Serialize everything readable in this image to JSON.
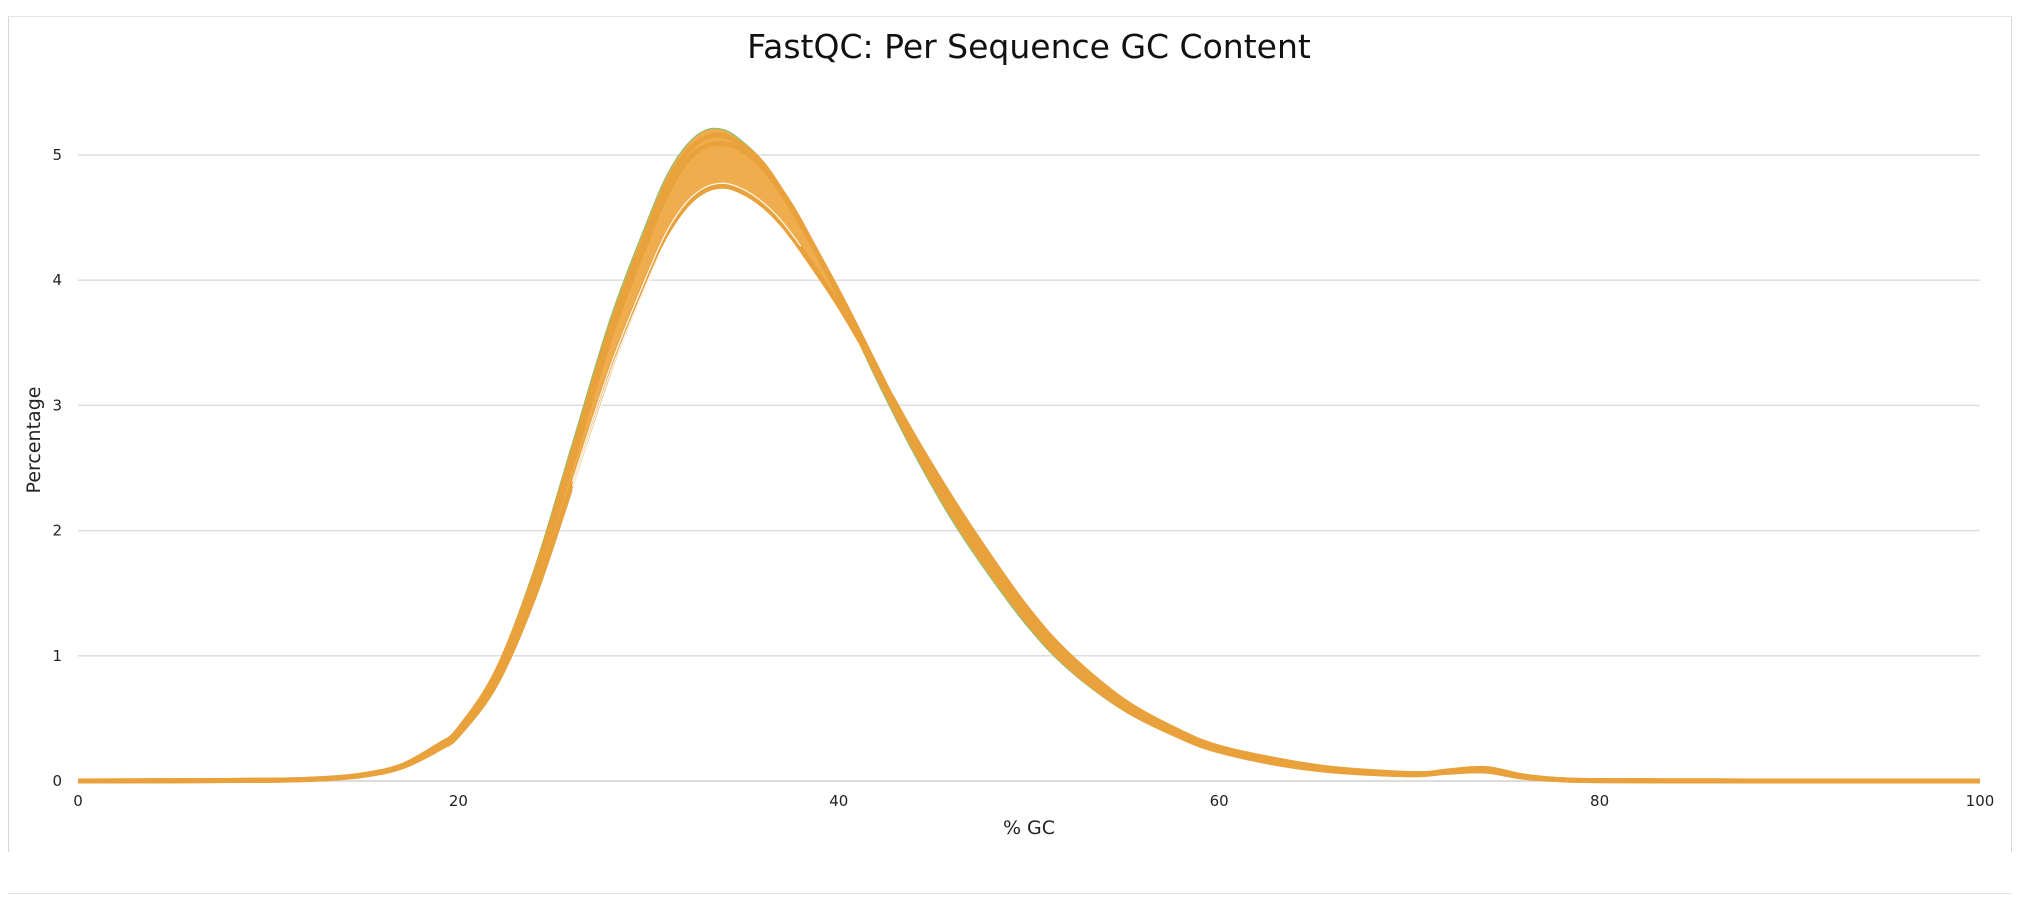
{
  "chart_data": {
    "type": "line",
    "title": "FastQC: Per Sequence GC Content",
    "xlabel": "% GC",
    "ylabel": "Percentage",
    "xlim": [
      0,
      100
    ],
    "ylim": [
      0,
      5.5
    ],
    "x_ticks": [
      0,
      20,
      40,
      60,
      80,
      100
    ],
    "y_ticks": [
      0,
      1,
      2,
      3,
      4,
      5
    ],
    "grid": true,
    "legend": "none",
    "colors": {
      "line": "#f0ad4e",
      "line_edge": "#e9a13c",
      "accent": "#8fbf6f",
      "grid": "#dedede"
    },
    "x": [
      0,
      5,
      10,
      13,
      15,
      17,
      19,
      20,
      22,
      24,
      26,
      28,
      30,
      31,
      32,
      33,
      34,
      35,
      36,
      37,
      38,
      40,
      42,
      44,
      46,
      48,
      50,
      52,
      55,
      58,
      60,
      63,
      66,
      70,
      72,
      74,
      76,
      78,
      80,
      85,
      90,
      95,
      100
    ],
    "series": [
      {
        "values": [
          0,
          0.002,
          0.006,
          0.02,
          0.05,
          0.12,
          0.28,
          0.4,
          0.85,
          1.6,
          2.55,
          3.55,
          4.35,
          4.7,
          4.95,
          5.07,
          5.09,
          5.03,
          4.9,
          4.7,
          4.45,
          3.9,
          3.3,
          2.7,
          2.18,
          1.72,
          1.3,
          0.96,
          0.6,
          0.36,
          0.25,
          0.15,
          0.09,
          0.05,
          0.07,
          0.08,
          0.03,
          0.01,
          0.003,
          0.001,
          0,
          0,
          0
        ]
      },
      {
        "values": [
          0,
          0.002,
          0.006,
          0.02,
          0.05,
          0.13,
          0.3,
          0.43,
          0.9,
          1.7,
          2.7,
          3.7,
          4.5,
          4.85,
          5.08,
          5.2,
          5.2,
          5.1,
          4.95,
          4.72,
          4.45,
          3.85,
          3.2,
          2.6,
          2.07,
          1.62,
          1.22,
          0.9,
          0.56,
          0.34,
          0.24,
          0.14,
          0.08,
          0.05,
          0.06,
          0.09,
          0.04,
          0.01,
          0.003,
          0.001,
          0,
          0,
          0
        ]
      },
      {
        "values": [
          0,
          0.002,
          0.005,
          0.018,
          0.045,
          0.11,
          0.26,
          0.37,
          0.78,
          1.48,
          2.38,
          3.3,
          4.05,
          4.38,
          4.6,
          4.72,
          4.75,
          4.7,
          4.6,
          4.45,
          4.25,
          3.8,
          3.28,
          2.74,
          2.24,
          1.78,
          1.36,
          1.02,
          0.64,
          0.39,
          0.27,
          0.17,
          0.1,
          0.06,
          0.07,
          0.08,
          0.03,
          0.01,
          0.003,
          0.001,
          0,
          0,
          0
        ]
      },
      {
        "values": [
          0,
          0.002,
          0.006,
          0.02,
          0.05,
          0.12,
          0.29,
          0.41,
          0.87,
          1.64,
          2.62,
          3.62,
          4.42,
          4.78,
          5.02,
          5.14,
          5.15,
          5.07,
          4.93,
          4.71,
          4.46,
          3.88,
          3.25,
          2.65,
          2.12,
          1.67,
          1.26,
          0.93,
          0.58,
          0.35,
          0.24,
          0.14,
          0.08,
          0.05,
          0.08,
          0.1,
          0.04,
          0.01,
          0.003,
          0.001,
          0,
          0,
          0
        ]
      }
    ]
  }
}
